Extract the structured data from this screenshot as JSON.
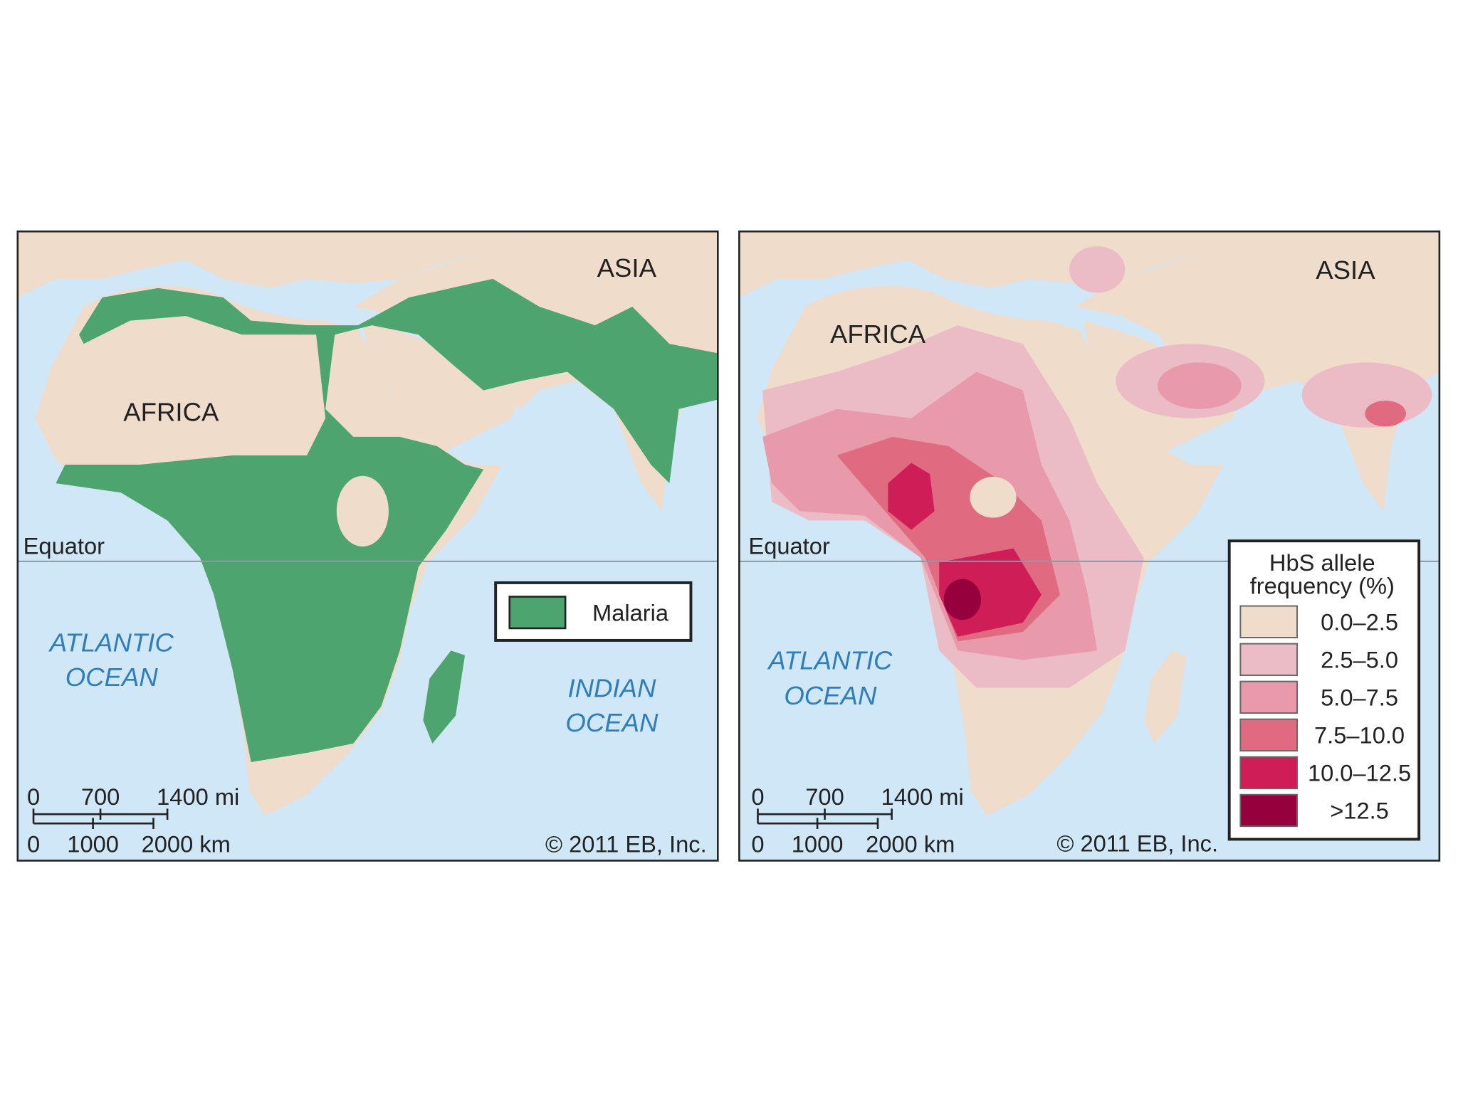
{
  "maps": [
    {
      "labels": {
        "asia": "ASIA",
        "africa": "AFRICA",
        "equator": "Equator",
        "atlantic": [
          "ATLANTIC",
          "OCEAN"
        ],
        "indian": [
          "INDIAN",
          "OCEAN"
        ]
      },
      "legend": {
        "items": [
          {
            "label": "Malaria",
            "color": "#4ea46e"
          }
        ]
      },
      "scale": {
        "miles": [
          "0",
          "700",
          "1400 mi"
        ],
        "km": [
          "0",
          "1000",
          "2000 km"
        ]
      },
      "copyright": "© 2011 EB, Inc."
    },
    {
      "labels": {
        "asia": "ASIA",
        "africa": "AFRICA",
        "equator": "Equator",
        "atlantic": [
          "ATLANTIC",
          "OCEAN"
        ]
      },
      "legend": {
        "title": [
          "HbS allele",
          "frequency (%)"
        ],
        "items": [
          {
            "label": "0.0–2.5",
            "color": "#efdccb"
          },
          {
            "label": "2.5–5.0",
            "color": "#ebbcc6"
          },
          {
            "label": "5.0–7.5",
            "color": "#e89aaa"
          },
          {
            "label": "7.5–10.0",
            "color": "#e06a80"
          },
          {
            "label": "10.0–12.5",
            "color": "#cf1d58"
          },
          {
            "label": ">12.5",
            "color": "#96003c"
          }
        ]
      },
      "scale": {
        "miles": [
          "0",
          "700",
          "1400 mi"
        ],
        "km": [
          "0",
          "1000",
          "2000 km"
        ]
      },
      "copyright": "© 2011 EB, Inc."
    }
  ]
}
